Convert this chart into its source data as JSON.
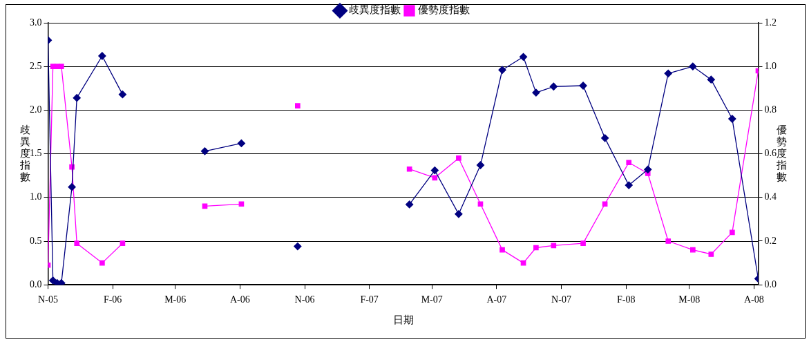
{
  "chart_data": {
    "type": "line",
    "xlabel": "日期",
    "ylabel": "歧異度指數",
    "y2label": "優勢度指數",
    "x": [
      "2005-11-01",
      "2005-11-08",
      "2005-11-14",
      "2005-11-20",
      "2005-12-05",
      "2005-12-12",
      "2006-01-17",
      "2006-02-15",
      "2006-04-01",
      "2006-06-12",
      "2006-08-03",
      "2006-09-15",
      "2006-10-22",
      "2007-01-01",
      "2007-03-30",
      "2007-05-05",
      "2007-06-08",
      "2007-07-09",
      "2007-08-09",
      "2007-09-08",
      "2007-09-26",
      "2007-10-21",
      "2007-12-02",
      "2008-01-02",
      "2008-02-05",
      "2008-03-03",
      "2008-04-01",
      "2008-05-06",
      "2008-06-01",
      "2008-07-01",
      "2008-08-07"
    ],
    "series": [
      {
        "name": "歧異度指數",
        "color": "#000080",
        "marker": "diamond",
        "values": [
          2.8,
          0.05,
          0.02,
          0.02,
          1.12,
          2.14,
          2.62,
          2.18,
          null,
          1.53,
          1.62,
          null,
          0.44,
          null,
          0.92,
          1.31,
          0.81,
          1.37,
          2.46,
          2.61,
          2.2,
          2.27,
          2.28,
          1.68,
          1.14,
          1.32,
          2.42,
          2.5,
          2.35,
          1.9,
          0.07
        ]
      },
      {
        "name": "優勢度指數",
        "color": "#ff00ff",
        "marker": "square",
        "axis": "y2",
        "values": [
          0.09,
          1.0,
          1.0,
          1.0,
          0.54,
          0.19,
          0.1,
          0.19,
          null,
          0.36,
          0.37,
          null,
          0.82,
          null,
          0.53,
          0.49,
          0.58,
          0.37,
          0.16,
          0.1,
          0.17,
          0.18,
          0.19,
          0.37,
          0.56,
          0.51,
          0.2,
          0.16,
          0.14,
          0.24,
          0.98
        ]
      }
    ],
    "xlim": [
      "2005-11-01",
      "2008-08-07"
    ],
    "xticks": [
      {
        "value": "2005-11-01",
        "label": "N-05"
      },
      {
        "value": "2006-02-01",
        "label": "F-06"
      },
      {
        "value": "2006-05-01",
        "label": "M-06"
      },
      {
        "value": "2006-08-01",
        "label": "A-06"
      },
      {
        "value": "2006-11-01",
        "label": "N-06"
      },
      {
        "value": "2007-02-01",
        "label": "F-07"
      },
      {
        "value": "2007-05-01",
        "label": "M-07"
      },
      {
        "value": "2007-08-01",
        "label": "A-07"
      },
      {
        "value": "2007-11-01",
        "label": "N-07"
      },
      {
        "value": "2008-02-01",
        "label": "F-08"
      },
      {
        "value": "2008-05-01",
        "label": "M-08"
      },
      {
        "value": "2008-08-01",
        "label": "A-08"
      }
    ],
    "ylim": [
      0,
      3
    ],
    "yticks": [
      {
        "value": 0,
        "label": "0.0"
      },
      0.5,
      {
        "value": 1,
        "label": "1.0"
      },
      1.5,
      {
        "value": 2,
        "label": "2.0"
      },
      2.5,
      {
        "value": 3,
        "label": "3.0"
      }
    ],
    "y2lim": [
      0,
      1.2
    ],
    "y2ticks": [
      {
        "value": 0,
        "label": "0.0"
      },
      0.2,
      0.4,
      0.6,
      0.8,
      {
        "value": 1,
        "label": "1.0"
      },
      1.2
    ],
    "grid": "y",
    "legend": "top",
    "line_style": "solid"
  }
}
